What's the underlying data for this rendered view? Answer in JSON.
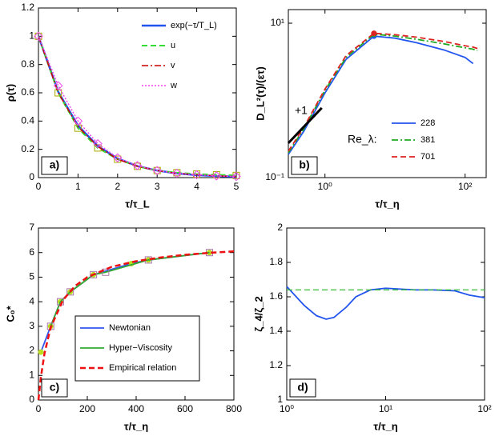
{
  "chart_data": [
    {
      "type": "line",
      "panel_label": "a)",
      "xlabel": "τ/τ_L",
      "ylabel": "ρ(τ)",
      "xlim": [
        0,
        5
      ],
      "ylim": [
        0,
        1.2
      ],
      "xticks": [
        0,
        1,
        2,
        3,
        4,
        5
      ],
      "yticks": [
        0,
        0.2,
        0.4,
        0.6,
        0.8,
        1,
        1.2
      ],
      "legend": "upper right",
      "x": [
        0,
        0.5,
        1,
        1.5,
        2,
        2.5,
        3,
        3.5,
        4,
        4.5,
        5
      ],
      "series": [
        {
          "name": "exp(−τ/T_L)",
          "color": "#2255ee",
          "linestyle": "solid",
          "linewidth": 2.5,
          "values": [
            1,
            0.607,
            0.368,
            0.223,
            0.135,
            0.082,
            0.05,
            0.03,
            0.018,
            0.011,
            0.007
          ]
        },
        {
          "name": "u",
          "color": "#33dd33",
          "linestyle": "dashed",
          "linewidth": 2,
          "marker": "square",
          "marker_color": "#aaaa00",
          "values": [
            1,
            0.6,
            0.35,
            0.21,
            0.13,
            0.08,
            0.05,
            0.035,
            0.025,
            0.02,
            0.015
          ]
        },
        {
          "name": "v",
          "color": "#cc0000",
          "linestyle": "dashdot",
          "linewidth": 1.5,
          "values": [
            1,
            0.6,
            0.36,
            0.22,
            0.13,
            0.08,
            0.05,
            0.03,
            0.02,
            0.012,
            0.008
          ]
        },
        {
          "name": "w",
          "color": "#ee44ee",
          "linestyle": "dotted",
          "linewidth": 1.5,
          "marker": "diamond",
          "marker_color": "#ee44ee",
          "values": [
            1,
            0.65,
            0.4,
            0.24,
            0.14,
            0.085,
            0.05,
            0.03,
            0.02,
            0.012,
            0.008
          ]
        }
      ]
    },
    {
      "type": "line",
      "panel_label": "b)",
      "xlabel": "τ/τ_η",
      "ylabel": "D_L²(τ)/(ετ)",
      "xscale": "log",
      "yscale": "log",
      "xlim": [
        0.3,
        200
      ],
      "ylim": [
        0.1,
        15
      ],
      "xticks": [
        {
          "value": 1,
          "label": "10⁰"
        },
        {
          "value": 100,
          "label": "10²"
        }
      ],
      "yticks": [
        {
          "value": 0.1,
          "label": "10⁻¹"
        },
        {
          "value": 10,
          "label": "10¹"
        }
      ],
      "legend": "lower right",
      "legend_title": "Re_λ:",
      "annotation": "+1",
      "x": [
        0.3,
        0.5,
        1,
        2,
        5,
        10,
        20,
        50,
        100,
        130,
        150
      ],
      "series": [
        {
          "name": "228",
          "color": "#2255ee",
          "linestyle": "solid",
          "linewidth": 1.8,
          "peak_marker_index": 4,
          "values": [
            0.2,
            0.4,
            1.25,
            3.4,
            6.8,
            6.4,
            5.6,
            4.5,
            3.6,
            3.0,
            null
          ]
        },
        {
          "name": "381",
          "color": "#22aa22",
          "linestyle": "dashdot",
          "linewidth": 1.8,
          "peak_marker_index": 4,
          "values": [
            0.21,
            0.43,
            1.35,
            3.6,
            7.2,
            6.8,
            6.2,
            5.4,
            4.8,
            4.6,
            4.4
          ]
        },
        {
          "name": "701",
          "color": "#dd2222",
          "linestyle": "dashed",
          "linewidth": 1.8,
          "peak_marker_index": 4,
          "values": [
            0.22,
            0.45,
            1.4,
            3.8,
            7.4,
            7.1,
            6.6,
            5.8,
            5.1,
            4.9,
            4.7
          ]
        },
        {
          "color": "#000000",
          "linestyle": "solid",
          "linewidth": 3,
          "x": [
            0.3,
            0.9
          ],
          "values": [
            0.28,
            0.8
          ]
        }
      ]
    },
    {
      "type": "line",
      "panel_label": "c)",
      "xlabel": "τ/τ_η",
      "ylabel": "C₀*",
      "xlim": [
        0,
        800
      ],
      "ylim": [
        0,
        7
      ],
      "xticks": [
        0,
        200,
        400,
        600,
        800
      ],
      "yticks": [
        0,
        1,
        2,
        3,
        4,
        5,
        6,
        7
      ],
      "legend": "lower center",
      "series": [
        {
          "name": "Newtonian",
          "color": "#3355ee",
          "linestyle": "solid",
          "linewidth": 1.8,
          "marker": "circle",
          "marker_color": "#bbdd22",
          "x": [
            10,
            50,
            90,
            130,
            225,
            380,
            450,
            700
          ],
          "values": [
            1.95,
            3.0,
            4.0,
            4.4,
            5.1,
            5.55,
            5.7,
            6.0
          ]
        },
        {
          "name": "Hyper−Viscosity",
          "color": "#33aa33",
          "linestyle": "solid",
          "linewidth": 1.8,
          "marker": "square",
          "marker_color": "#aa77aa",
          "x": [
            50,
            90,
            130,
            225,
            275,
            450,
            700
          ],
          "values": [
            3.0,
            4.0,
            4.4,
            5.1,
            5.2,
            5.7,
            6.0
          ]
        },
        {
          "name": "Empirical relation",
          "color": "#ee1111",
          "linestyle": "dashed",
          "linewidth": 2.5,
          "x": [
            0,
            10,
            25,
            50,
            100,
            150,
            200,
            300,
            400,
            500,
            600,
            700,
            800
          ],
          "values": [
            0,
            0.93,
            1.91,
            2.95,
            4.06,
            4.64,
            5.0,
            5.42,
            5.65,
            5.8,
            5.91,
            5.99,
            6.05
          ]
        }
      ]
    },
    {
      "type": "line",
      "panel_label": "d)",
      "xlabel": "τ/τ_η",
      "ylabel": "ζ_4/ζ_2",
      "xscale": "log",
      "xlim": [
        1,
        100
      ],
      "ylim": [
        1,
        2
      ],
      "xticks": [
        {
          "value": 1,
          "label": "10⁰"
        },
        {
          "value": 10,
          "label": "10¹"
        },
        {
          "value": 100,
          "label": "10²"
        }
      ],
      "yticks": [
        1,
        1.2,
        1.4,
        1.6,
        1.8,
        2
      ],
      "series": [
        {
          "color": "#2255ee",
          "linestyle": "solid",
          "linewidth": 1.8,
          "x": [
            1,
            1.5,
            2,
            2.5,
            3,
            4,
            5,
            7,
            10,
            20,
            30,
            50,
            70,
            100
          ],
          "values": [
            1.66,
            1.55,
            1.49,
            1.47,
            1.48,
            1.54,
            1.6,
            1.64,
            1.65,
            1.64,
            1.64,
            1.635,
            1.61,
            1.595
          ]
        },
        {
          "color": "#33bb33",
          "linestyle": "dashed",
          "linewidth": 1.2,
          "x": [
            1,
            100
          ],
          "values": [
            1.64,
            1.64
          ]
        }
      ]
    }
  ]
}
